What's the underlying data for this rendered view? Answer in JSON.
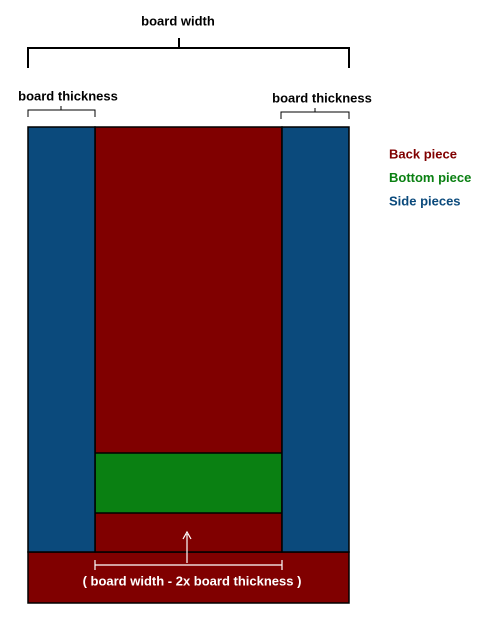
{
  "dimensions": {
    "board_width": "board width",
    "left_thickness": "board thickness",
    "right_thickness": "board thickness",
    "bottom_formula": "( board width - 2x board thickness )"
  },
  "legend": [
    {
      "label": "Back piece",
      "color": "#800000"
    },
    {
      "label": "Bottom piece",
      "color": "#0a8012"
    },
    {
      "label": "Side pieces",
      "color": "#0b4a7c"
    }
  ]
}
